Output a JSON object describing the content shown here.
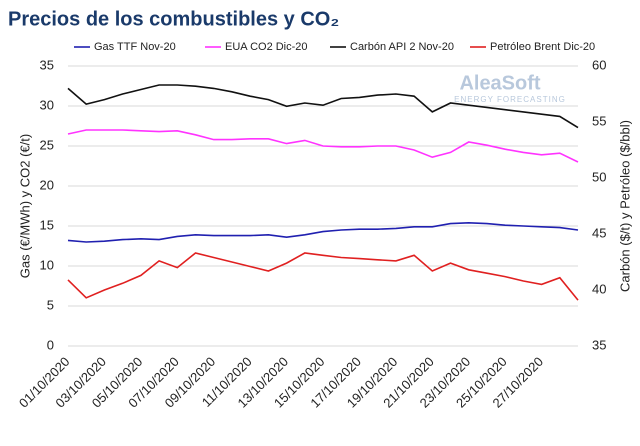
{
  "chart_data": {
    "type": "line",
    "title": "Precios de los combustibles y CO₂",
    "annotations": [
      "AleaSoft",
      "ENERGY FORECASTING"
    ],
    "ylabel": "Gas (€/MWh) y CO2 (€/t)",
    "y2label": "Carbón ($/t) y Petróleo ($/bbl)",
    "categories": [
      "01/10/2020",
      null,
      "03/10/2020",
      null,
      "05/10/2020",
      null,
      "07/10/2020",
      null,
      "09/10/2020",
      null,
      "11/10/2020",
      null,
      "13/10/2020",
      null,
      "15/10/2020",
      null,
      "17/10/2020",
      null,
      "19/10/2020",
      null,
      "21/10/2020",
      null,
      "23/10/2020",
      null,
      "25/10/2020",
      null,
      "27/10/2020",
      null,
      null
    ],
    "ylim": [
      0,
      35
    ],
    "yticks": [
      0,
      5,
      10,
      15,
      20,
      25,
      30,
      35
    ],
    "y2lim": [
      35,
      60
    ],
    "y2ticks": [
      35,
      40,
      45,
      50,
      55,
      60
    ],
    "grid": true,
    "legend": "top",
    "series": [
      {
        "name": "Gas TTF Nov-20",
        "color": "#2020b0",
        "values": [
          13.2,
          13.0,
          13.1,
          13.3,
          13.4,
          13.3,
          13.7,
          13.9,
          13.8,
          13.8,
          13.8,
          13.9,
          13.6,
          13.9,
          14.3,
          14.5,
          14.6,
          14.6,
          14.7,
          14.9,
          14.9,
          15.3,
          15.4,
          15.3,
          15.1,
          15.0,
          14.9,
          14.8,
          14.5
        ]
      },
      {
        "name": "EUA CO2 Dic-20",
        "color": "#ff33ff",
        "values": [
          26.5,
          27.0,
          27.0,
          27.0,
          26.9,
          26.8,
          26.9,
          26.4,
          25.8,
          25.8,
          25.9,
          25.9,
          25.3,
          25.7,
          25.0,
          24.9,
          24.9,
          25.0,
          25.0,
          24.5,
          23.6,
          24.2,
          25.5,
          25.1,
          24.6,
          24.2,
          23.9,
          24.1,
          23.0
        ]
      },
      {
        "name": "Carbón API 2 Nov-20",
        "color": "#111111",
        "axis": "y2",
        "values": [
          58.0,
          56.6,
          57.0,
          57.5,
          57.9,
          58.3,
          58.3,
          58.2,
          58.0,
          57.7,
          57.3,
          57.0,
          56.4,
          56.7,
          56.5,
          57.1,
          57.2,
          57.4,
          57.5,
          57.3,
          55.9,
          56.7,
          56.5,
          56.3,
          56.1,
          55.9,
          55.7,
          55.5,
          54.5
        ]
      },
      {
        "name": "Petróleo Brent Dic-20",
        "color": "#e02020",
        "axis": "y2",
        "values": [
          40.9,
          39.3,
          40.0,
          40.6,
          41.3,
          42.6,
          42.0,
          43.3,
          42.9,
          42.5,
          42.1,
          41.7,
          42.4,
          43.3,
          43.1,
          42.9,
          42.8,
          42.7,
          42.6,
          43.1,
          41.7,
          42.4,
          41.8,
          41.5,
          41.2,
          40.8,
          40.5,
          41.1,
          39.1
        ]
      }
    ]
  }
}
